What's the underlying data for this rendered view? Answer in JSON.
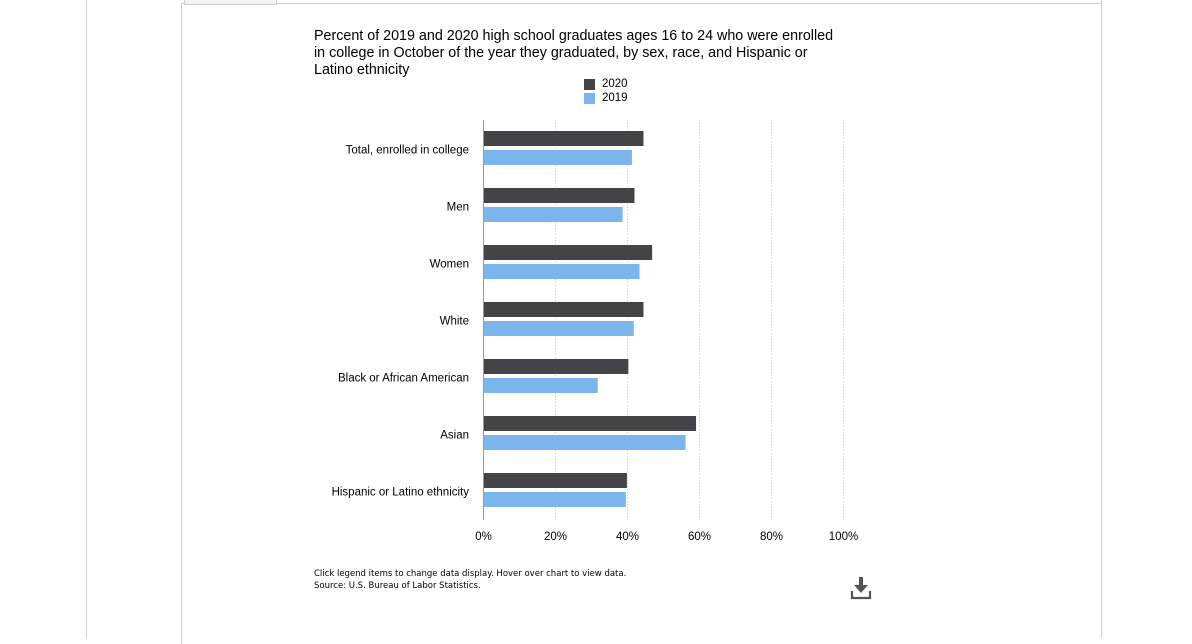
{
  "chart_data": {
    "type": "bar",
    "orientation": "horizontal",
    "title": "Percent of 2019 and 2020 high school graduates ages 16 to 24 who were enrolled in college in October of the year they graduated, by sex, race, and Hispanic or Latino ethnicity",
    "categories": [
      "Total, enrolled in college",
      "Men",
      "Women",
      "White",
      "Black or African American",
      "Asian",
      "Hispanic or Latino ethnicity"
    ],
    "series": [
      {
        "name": "2020",
        "color": "#434348",
        "values": [
          44.3,
          41.8,
          46.7,
          44.3,
          40.1,
          58.9,
          39.7
        ]
      },
      {
        "name": "2019",
        "color": "#7cb5ec",
        "values": [
          41.1,
          38.5,
          43.2,
          41.6,
          31.6,
          56.0,
          39.4
        ]
      }
    ],
    "xlim": [
      0,
      100
    ],
    "x_ticks": [
      "0%",
      "20%",
      "40%",
      "60%",
      "80%",
      "100%"
    ],
    "grid": true,
    "legend_position": "top-center"
  },
  "footer": {
    "instructions": "Click legend items to change data display. Hover over chart to view data.",
    "source": "Source: U.S. Bureau of Labor Statistics."
  },
  "icons": {
    "download": "download-icon"
  }
}
